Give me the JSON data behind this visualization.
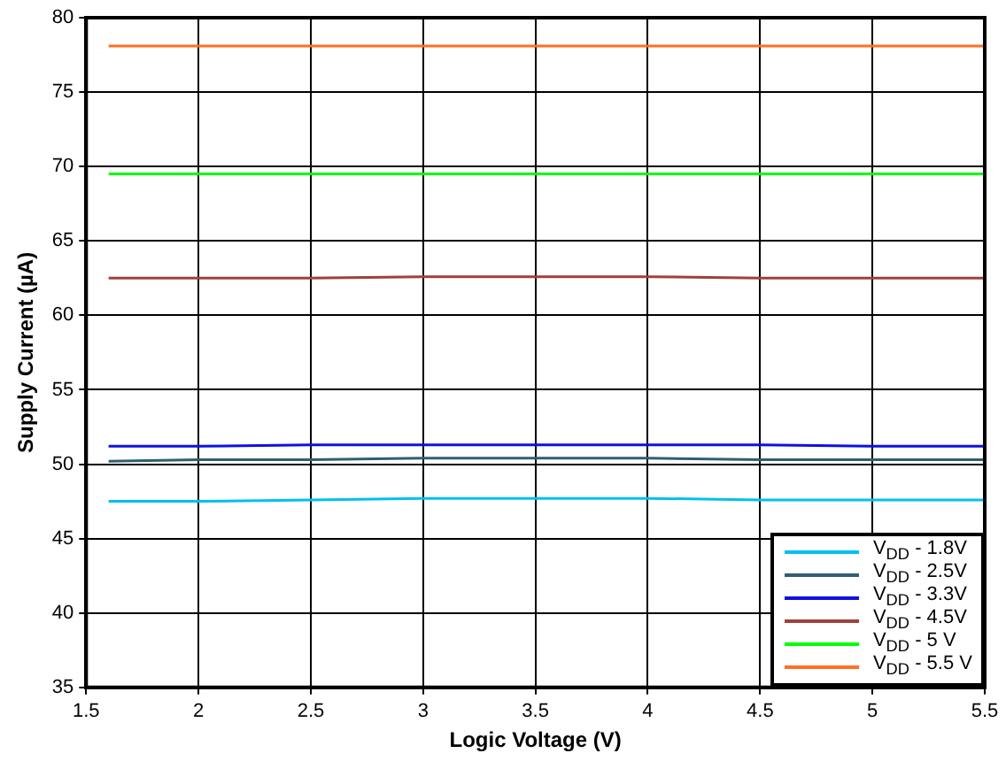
{
  "chart_data": {
    "type": "line",
    "xlabel": "Logic Voltage (V)",
    "ylabel": "Supply Current (µA)",
    "x": [
      1.6,
      2,
      2.5,
      3,
      3.5,
      4,
      4.5,
      5,
      5.5
    ],
    "series": [
      {
        "name": "V$_{DD}$ - 1.8V",
        "color": "#00c0f0",
        "values": [
          47.5,
          47.5,
          47.6,
          47.7,
          47.7,
          47.7,
          47.6,
          47.6,
          47.6
        ]
      },
      {
        "name": "V$_{DD}$ - 2.5V",
        "color": "#2f5f70",
        "values": [
          50.2,
          50.3,
          50.3,
          50.4,
          50.4,
          50.4,
          50.3,
          50.3,
          50.3
        ]
      },
      {
        "name": "V$_{DD}$ - 3.3V",
        "color": "#1010e0",
        "values": [
          51.2,
          51.2,
          51.3,
          51.3,
          51.3,
          51.3,
          51.3,
          51.2,
          51.2
        ]
      },
      {
        "name": "V$_{DD}$ - 4.5V",
        "color": "#a0403a",
        "values": [
          62.5,
          62.5,
          62.5,
          62.6,
          62.6,
          62.6,
          62.5,
          62.5,
          62.5
        ]
      },
      {
        "name": "V$_{DD}$ - 5 V",
        "color": "#00ff00",
        "values": [
          69.5,
          69.5,
          69.5,
          69.5,
          69.5,
          69.5,
          69.5,
          69.5,
          69.5
        ]
      },
      {
        "name": "V$_{DD}$ - 5.5 V",
        "color": "#ff7020",
        "values": [
          78.1,
          78.1,
          78.1,
          78.1,
          78.1,
          78.1,
          78.1,
          78.1,
          78.1
        ]
      }
    ],
    "xlim": [
      1.5,
      5.5
    ],
    "xticks": [
      1.5,
      2,
      2.5,
      3,
      3.5,
      4,
      4.5,
      5,
      5.5
    ],
    "ylim": [
      35,
      80
    ],
    "yticks": [
      35,
      40,
      45,
      50,
      55,
      60,
      65,
      70,
      75,
      80
    ],
    "grid": true,
    "legend": "bottom right",
    "marker": "none",
    "line_style": "solid"
  }
}
